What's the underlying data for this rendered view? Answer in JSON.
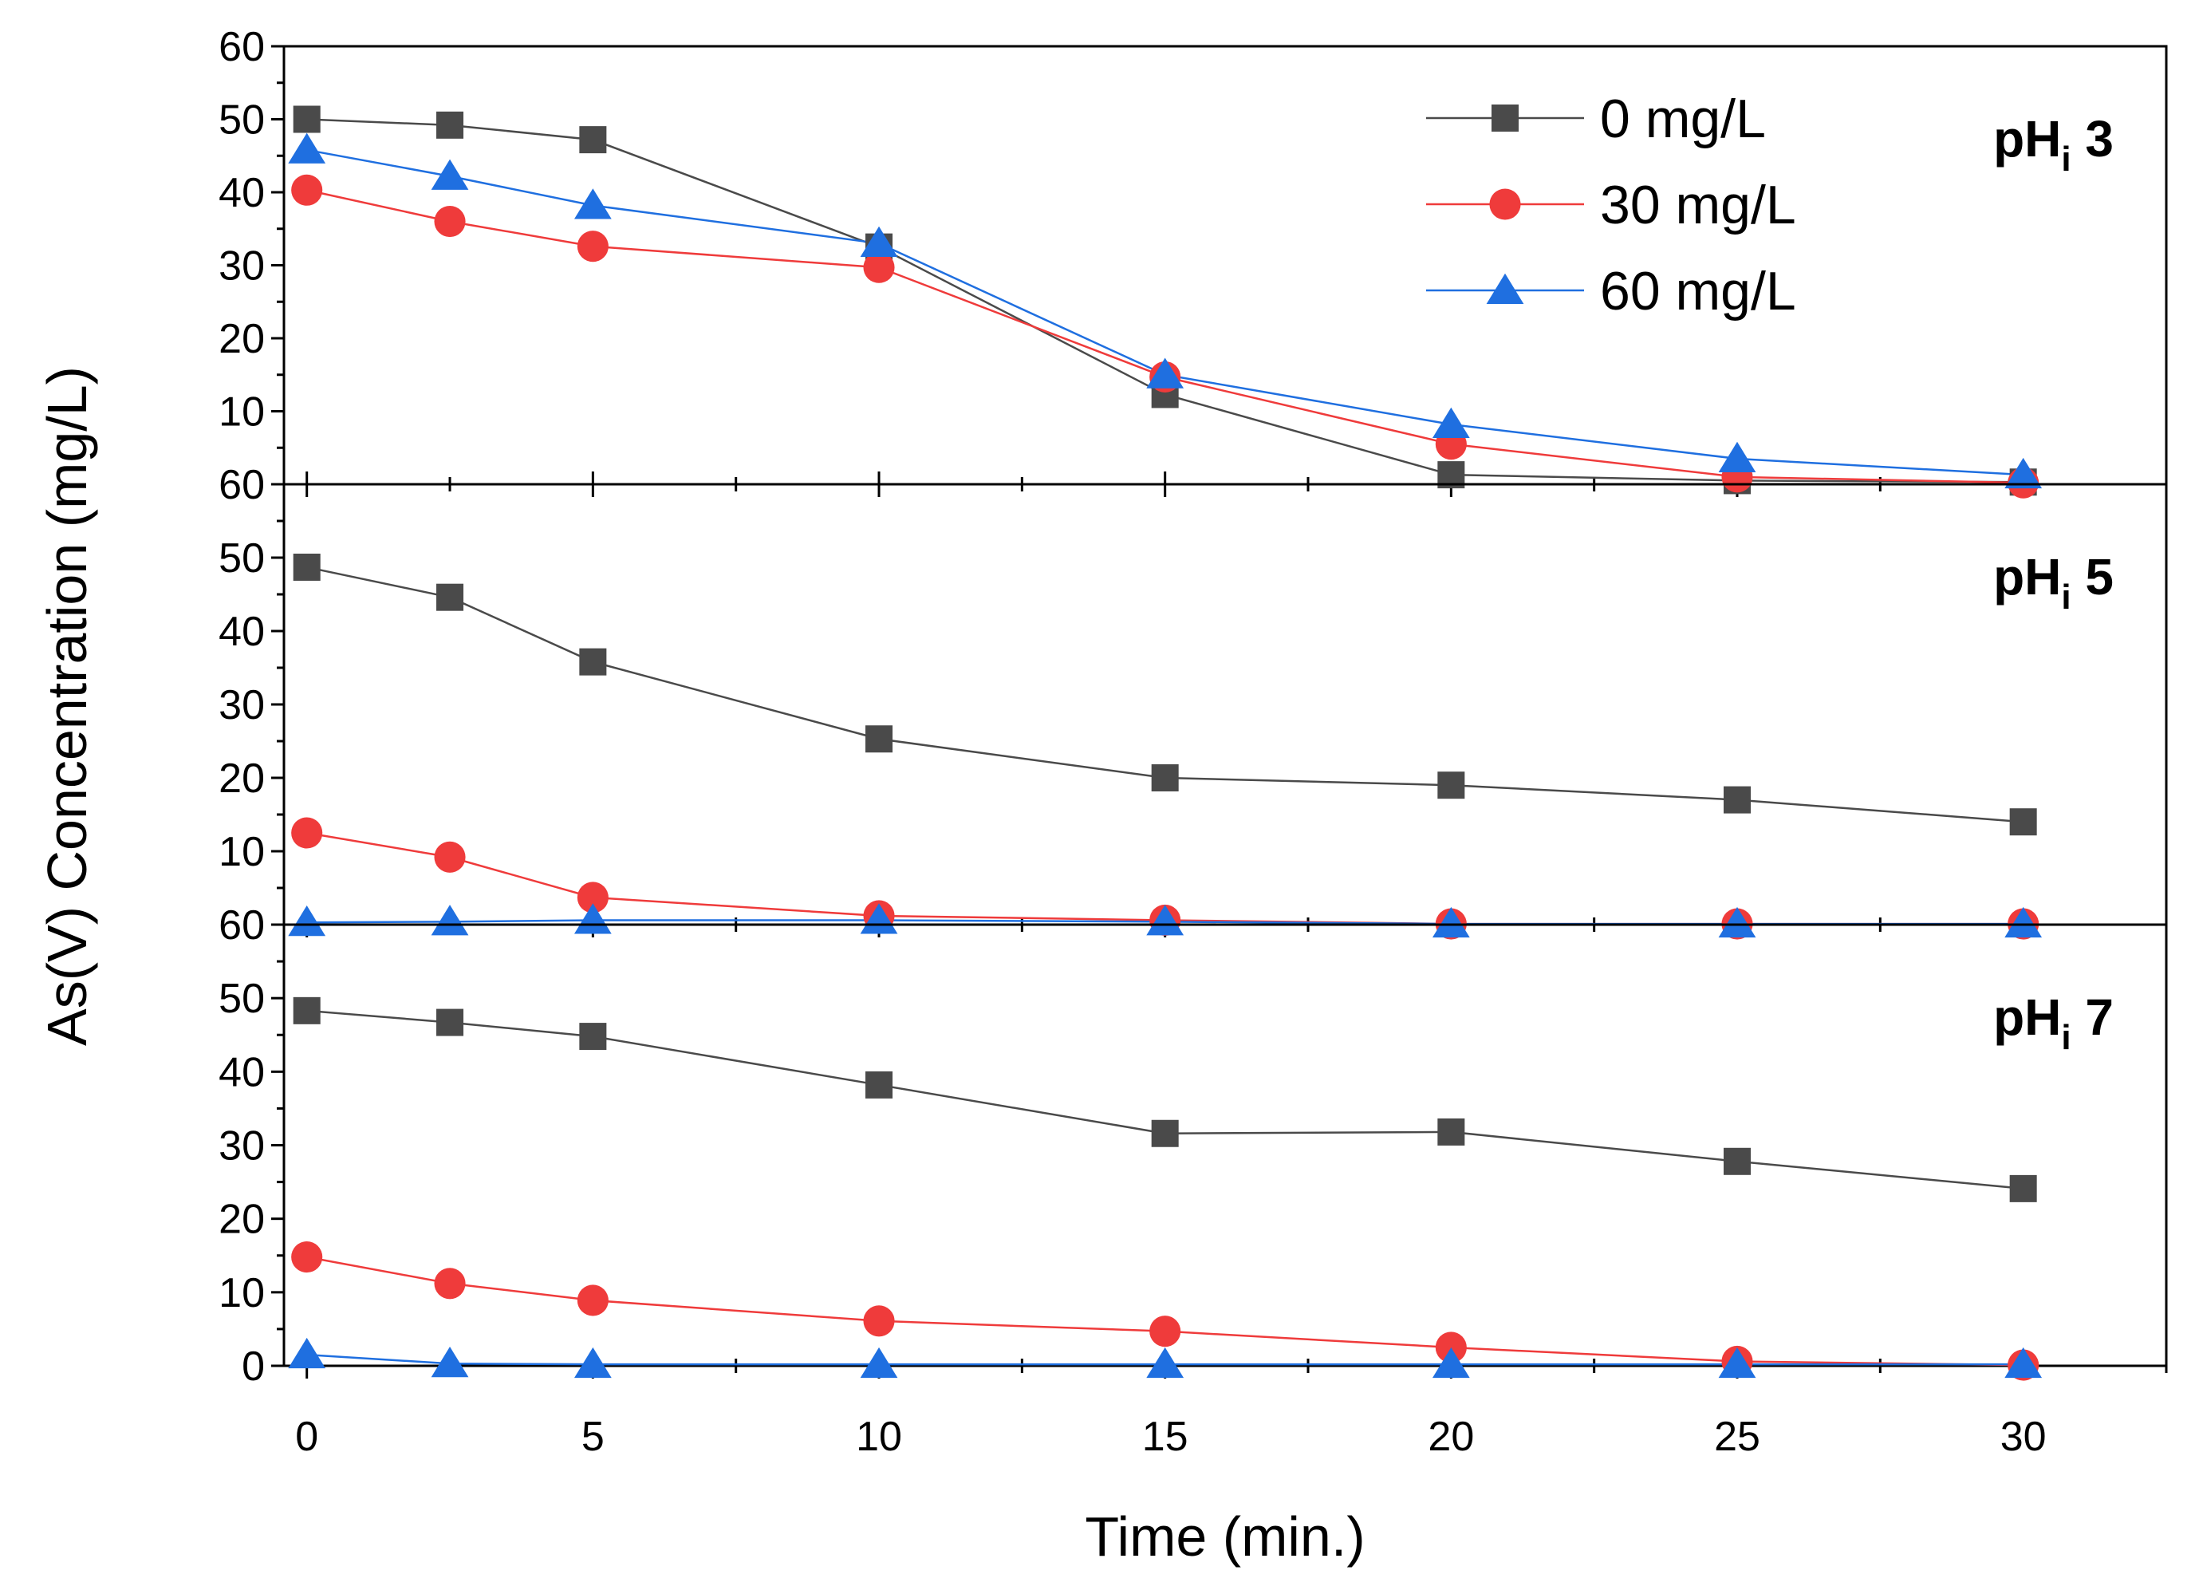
{
  "chart_data": {
    "type": "line",
    "xlabel": "Time (min.)",
    "ylabel": "As(V) Concentration (mg/L)",
    "xlim": [
      -0.4,
      32.5
    ],
    "xticks": [
      0,
      5,
      10,
      15,
      20,
      25,
      30
    ],
    "x": [
      0,
      2.5,
      5,
      10,
      15,
      20,
      25,
      30
    ],
    "legend": {
      "position": "top-right",
      "entries": [
        "0 mg/L",
        "30 mg/L",
        "60 mg/L"
      ]
    },
    "series_styles": [
      {
        "name": "0 mg/L",
        "color": "#4a4a4a",
        "marker": "square"
      },
      {
        "name": "30 mg/L",
        "color": "#ef3b3b",
        "marker": "circle"
      },
      {
        "name": "60 mg/L",
        "color": "#1f6fe0",
        "marker": "triangle"
      }
    ],
    "panels": [
      {
        "label_main": "pH",
        "label_sub": "i",
        "label_num": "3",
        "ylim": [
          0,
          60
        ],
        "yticks": [
          10,
          20,
          30,
          40,
          50,
          60
        ],
        "bottom_tick_label": "60",
        "series": [
          {
            "name": "0 mg/L",
            "values": [
              50,
              49.2,
              47.2,
              32.5,
              12.3,
              1.3,
              0.5,
              0.3
            ]
          },
          {
            "name": "30 mg/L",
            "values": [
              40.3,
              36,
              32.6,
              29.7,
              14.7,
              5.5,
              1.0,
              0.2
            ]
          },
          {
            "name": "60 mg/L",
            "values": [
              45.8,
              42.2,
              38.2,
              33,
              15,
              8.2,
              3.5,
              1.3
            ]
          }
        ]
      },
      {
        "label_main": "pH",
        "label_sub": "i",
        "label_num": "5",
        "ylim": [
          0,
          60
        ],
        "yticks": [
          10,
          20,
          30,
          40,
          50
        ],
        "bottom_tick_label": "60",
        "series": [
          {
            "name": "0 mg/L",
            "values": [
              48.7,
              44.6,
              35.8,
              25.3,
              20,
              19,
              17,
              14
            ]
          },
          {
            "name": "30 mg/L",
            "values": [
              12.5,
              9.2,
              3.7,
              1.2,
              0.6,
              0.1,
              0.1,
              0.1
            ]
          },
          {
            "name": "60 mg/L",
            "values": [
              0.3,
              0.4,
              0.6,
              0.6,
              0.4,
              0.1,
              0.1,
              0.1
            ]
          }
        ]
      },
      {
        "label_main": "pH",
        "label_sub": "i",
        "label_num": "7",
        "ylim": [
          0,
          60
        ],
        "yticks": [
          10,
          20,
          30,
          40,
          50
        ],
        "bottom_tick_label": "0",
        "series": [
          {
            "name": "0 mg/L",
            "values": [
              48.3,
              46.7,
              44.8,
              38.2,
              31.6,
              31.8,
              27.8,
              24.1
            ]
          },
          {
            "name": "30 mg/L",
            "values": [
              14.8,
              11.2,
              8.9,
              6.1,
              4.7,
              2.5,
              0.6,
              0.1
            ]
          },
          {
            "name": "60 mg/L",
            "values": [
              1.5,
              0.3,
              0.2,
              0.2,
              0.2,
              0.2,
              0.2,
              0.2
            ]
          }
        ]
      }
    ]
  }
}
